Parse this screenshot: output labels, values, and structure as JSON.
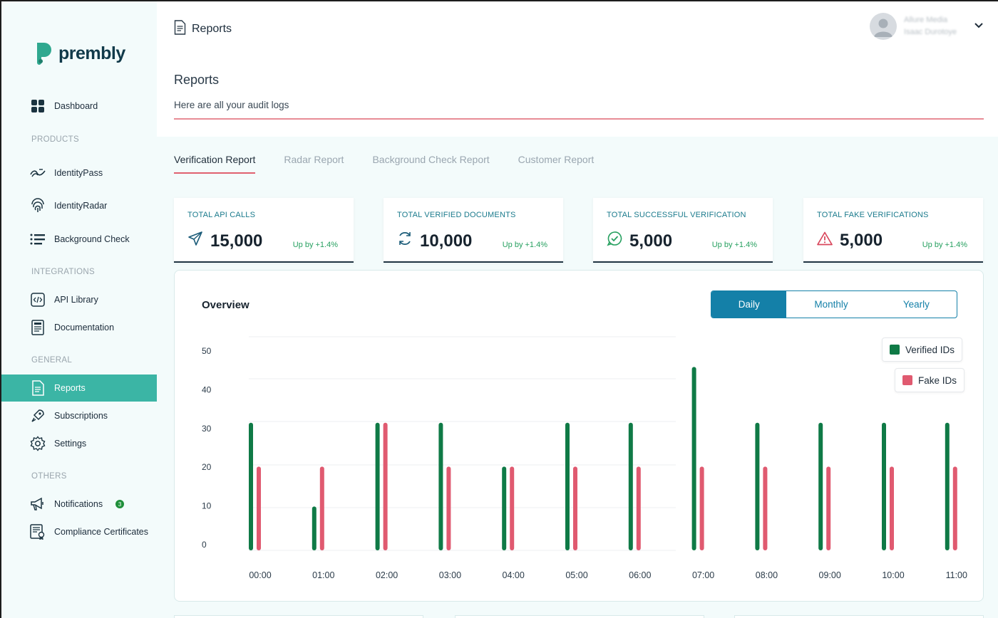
{
  "brand": {
    "name": "prembly",
    "color": "#2fa88f"
  },
  "sidebar": {
    "dashboard": "Dashboard",
    "products_label": "PRODUCTS",
    "identitypass": "IdentityPass",
    "identityradar": "IdentityRadar",
    "background_check": "Background Check",
    "integrations_label": "INTEGRATIONS",
    "api_library": "API Library",
    "documentation": "Documentation",
    "general_label": "GENERAL",
    "reports": "Reports",
    "subscriptions": "Subscriptions",
    "settings": "Settings",
    "others_label": "OTHERS",
    "notifications": "Notifications",
    "notifications_count": "3",
    "compliance": "Compliance Certificates",
    "active_color": "#3bb5a5"
  },
  "header": {
    "breadcrumb": "Reports",
    "user_org": "Allure Media",
    "user_name": "Isaac Durotoye",
    "title": "Reports",
    "subtitle": "Here are all your audit logs"
  },
  "tabs": [
    "Verification Report",
    "Radar Report",
    "Background Check Report",
    "Customer Report"
  ],
  "stats": [
    {
      "label": "TOTAL API CALLS",
      "value": "15,000",
      "change": "Up by +1.4%",
      "icon": "send-icon"
    },
    {
      "label": "TOTAL VERIFIED DOCUMENTS",
      "value": "10,000",
      "change": "Up by +1.4%",
      "icon": "refresh-icon"
    },
    {
      "label": "TOTAL SUCCESSFUL VERIFICATION",
      "value": "5,000",
      "change": "Up by +1.4%",
      "icon": "check-chat-icon"
    },
    {
      "label": "TOTAL FAKE VERIFICATIONS",
      "value": "5,000",
      "change": "Up by +1.4%",
      "icon": "warning-icon"
    }
  ],
  "overview": {
    "title": "Overview",
    "periods": [
      "Daily",
      "Monthly",
      "Yearly"
    ],
    "selected_period": "Daily"
  },
  "chart_data": {
    "type": "bar",
    "categories": [
      "00:00",
      "01:00",
      "02:00",
      "03:00",
      "04:00",
      "05:00",
      "06:00",
      "07:00",
      "08:00",
      "09:00",
      "10:00",
      "11:00"
    ],
    "series": [
      {
        "name": "Verified IDs",
        "color": "#0f7a46",
        "values": [
          32,
          11,
          32,
          32,
          21,
          32,
          32,
          46,
          32,
          32,
          32,
          32
        ]
      },
      {
        "name": "Fake IDs",
        "color": "#e05a70",
        "values": [
          21,
          21,
          32,
          21,
          21,
          21,
          21,
          21,
          21,
          21,
          21,
          21
        ]
      }
    ],
    "yticks": [
      0,
      10,
      20,
      30,
      40,
      50
    ],
    "ylim": [
      0,
      55
    ],
    "grid": true,
    "legend": "top-right"
  }
}
